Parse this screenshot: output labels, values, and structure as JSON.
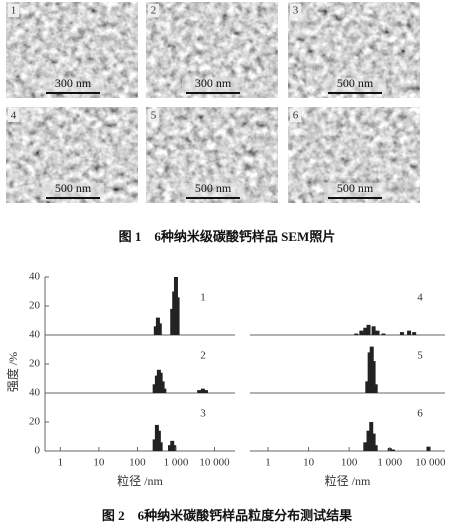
{
  "figure1": {
    "panels": [
      {
        "label": "1",
        "scale": "300 nm"
      },
      {
        "label": "2",
        "scale": "300 nm"
      },
      {
        "label": "3",
        "scale": "500 nm"
      },
      {
        "label": "4",
        "scale": "500 nm"
      },
      {
        "label": "5",
        "scale": "500 nm"
      },
      {
        "label": "6",
        "scale": "500 nm"
      }
    ],
    "caption": "图 1　6种纳米级碳酸钙样品 SEM照片"
  },
  "chart_data": [
    {
      "type": "bar",
      "xlim": [
        0.4,
        34000
      ],
      "log_x": true,
      "xticks": [
        1,
        10,
        100,
        {
          "value": 1000,
          "label": "1 000"
        },
        {
          "value": 10000,
          "label": "10 000"
        }
      ],
      "ylim": [
        0,
        40
      ],
      "yticks": [
        0,
        20,
        40
      ],
      "ylabel": "强度 /%",
      "xlabel": "粒径 /nm",
      "color": "#222222",
      "panels": [
        {
          "label": "1",
          "x": [
            300,
            340,
            380,
            800,
            900,
            1000,
            1100
          ],
          "values": [
            6,
            12,
            8,
            18,
            30,
            40,
            26
          ]
        },
        {
          "label": "2",
          "x": [
            280,
            320,
            360,
            400,
            450,
            500,
            4000,
            5000,
            6000
          ],
          "values": [
            6,
            12,
            16,
            14,
            8,
            3,
            2,
            3,
            2
          ]
        },
        {
          "label": "3",
          "x": [
            280,
            320,
            360,
            400,
            700,
            800,
            900
          ],
          "values": [
            8,
            18,
            14,
            6,
            4,
            7,
            4
          ]
        }
      ]
    },
    {
      "type": "bar",
      "xlim": [
        0.36,
        23000
      ],
      "log_x": true,
      "xticks": [
        1,
        10,
        100,
        {
          "value": 1000,
          "label": "1 000"
        },
        {
          "value": 10000,
          "label": "10 000"
        }
      ],
      "ylim": [
        0,
        40
      ],
      "xlabel": "粒径 /nm",
      "color": "#222222",
      "panels": [
        {
          "label": "4",
          "x": [
            150,
            200,
            250,
            300,
            400,
            500,
            700,
            2000,
            3000,
            4000
          ],
          "values": [
            1,
            3,
            5,
            7,
            6,
            3,
            1,
            2,
            3,
            2
          ]
        },
        {
          "label": "5",
          "x": [
            280,
            320,
            360,
            400,
            450
          ],
          "values": [
            8,
            28,
            32,
            22,
            6
          ]
        },
        {
          "label": "6",
          "x": [
            250,
            300,
            350,
            400,
            450,
            1000,
            1200,
            9000
          ],
          "values": [
            6,
            14,
            20,
            12,
            4,
            2,
            1,
            3
          ]
        }
      ]
    }
  ],
  "figure2": {
    "caption": "图 2　6种纳米碳酸钙样品粒度分布测试结果"
  }
}
